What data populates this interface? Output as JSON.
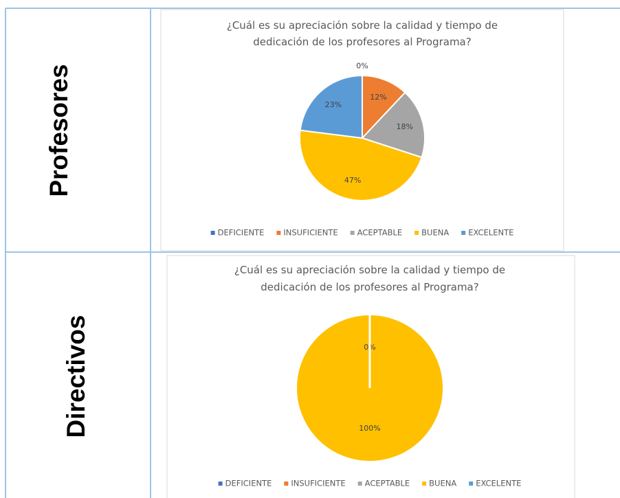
{
  "table": {
    "rows": [
      {
        "label": "Profesores"
      },
      {
        "label": "Directivos"
      }
    ]
  },
  "chart_data": [
    {
      "type": "pie",
      "title": [
        "¿Cuál es su apreciación sobre la calidad y tiempo de",
        "dedicación de los profesores al Programa?"
      ],
      "categories": [
        "DEFICIENTE",
        "INSUFICIENTE",
        "ACEPTABLE",
        "BUENA",
        "EXCELENTE"
      ],
      "values": [
        0,
        12,
        18,
        47,
        23
      ],
      "value_labels": [
        "0%",
        "12%",
        "18%",
        "47%",
        "23%"
      ],
      "colors": [
        "#4472c4",
        "#ed7d31",
        "#a5a5a5",
        "#ffc000",
        "#5b9bd5"
      ],
      "legend": "bottom"
    },
    {
      "type": "pie",
      "title": [
        "¿Cuál es su apreciación sobre la calidad y tiempo de",
        "dedicación de los profesores al Programa?"
      ],
      "categories": [
        "DEFICIENTE",
        "INSUFICIENTE",
        "ACEPTABLE",
        "BUENA",
        "EXCELENTE"
      ],
      "values": [
        0,
        0,
        0,
        100,
        0
      ],
      "value_labels": [
        "0%",
        "0%",
        "0%",
        "100%",
        "0%"
      ],
      "colors": [
        "#4472c4",
        "#ed7d31",
        "#a5a5a5",
        "#ffc000",
        "#5b9bd5"
      ],
      "legend": "bottom"
    }
  ]
}
